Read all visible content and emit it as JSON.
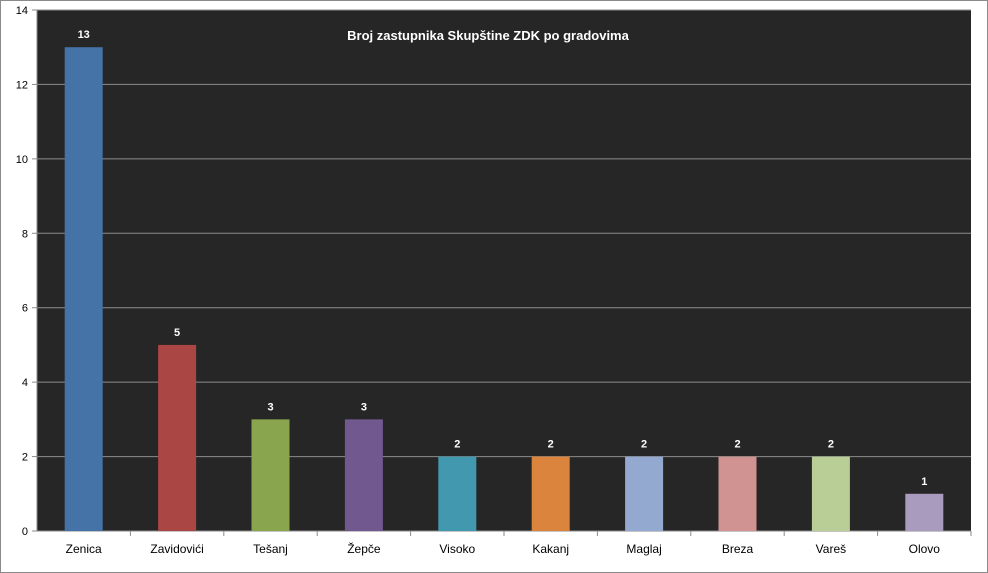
{
  "chart_data": {
    "type": "bar",
    "title": "Broj zastupnika Skupštine ZDK po gradovima",
    "xlabel": "",
    "ylabel": "",
    "ylim": [
      0,
      14
    ],
    "yticks": [
      0,
      2,
      4,
      6,
      8,
      10,
      12,
      14
    ],
    "grid": true,
    "legend": "none",
    "plot_background": "#262626",
    "gridline_color": "#8c8c8c",
    "categories": [
      "Zenica",
      "Zavidovići",
      "Tešanj",
      "Žepče",
      "Visoko",
      "Kakanj",
      "Maglaj",
      "Breza",
      "Vareš",
      "Olovo"
    ],
    "values": [
      13,
      5,
      3,
      3,
      2,
      2,
      2,
      2,
      2,
      1
    ],
    "data_labels": [
      "13",
      "5",
      "3",
      "3",
      "2",
      "2",
      "2",
      "2",
      "2",
      "1"
    ],
    "colors": [
      "#4572a7",
      "#aa4643",
      "#89a54e",
      "#71588f",
      "#4198af",
      "#db843d",
      "#93a9cf",
      "#d19392",
      "#b9cd96",
      "#a99bbd"
    ]
  }
}
